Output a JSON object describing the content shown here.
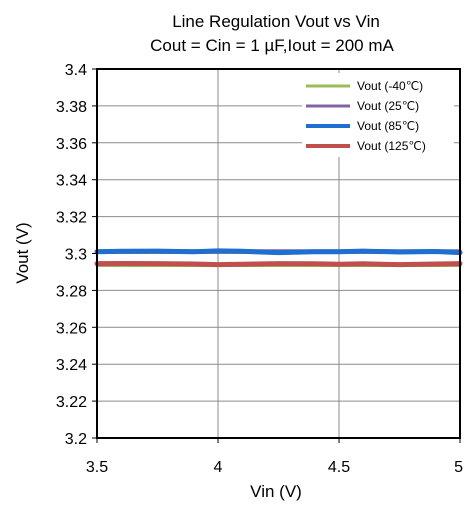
{
  "chart_data": {
    "type": "line",
    "title": [
      "Line Regulation Vout vs Vin",
      "Cout = Cin = 1 µF,Iout = 200 mA"
    ],
    "xlabel": "Vin (V)",
    "ylabel": "Vout (V)",
    "xlim": [
      3.5,
      5
    ],
    "ylim": [
      3.2,
      3.4
    ],
    "xticks": [
      3.5,
      4,
      4.5,
      5
    ],
    "xtick_labels": [
      "3.5",
      "4",
      "4.5",
      "5"
    ],
    "yticks": [
      3.2,
      3.22,
      3.24,
      3.26,
      3.28,
      3.3,
      3.32,
      3.34,
      3.36,
      3.38,
      3.4
    ],
    "ytick_labels": [
      "3.2",
      "3.22",
      "3.24",
      "3.26",
      "3.28",
      "3.3",
      "3.32",
      "3.34",
      "3.36",
      "3.38",
      "3.4"
    ],
    "grid": true,
    "legend_position": "top-right",
    "series": [
      {
        "name": "Vout  (-40℃)",
        "color": "#9bbb59",
        "x": [
          3.5,
          3.75,
          4.0,
          4.25,
          4.5,
          4.75,
          5.0
        ],
        "y": [
          3.2935,
          3.2935,
          3.2935,
          3.2935,
          3.2935,
          3.2935,
          3.2935
        ]
      },
      {
        "name": "Vout  (25℃)",
        "color": "#8064a2",
        "x": [
          3.5,
          3.75,
          4.0,
          4.25,
          4.5,
          4.75,
          5.0
        ],
        "y": [
          3.3015,
          3.3015,
          3.3015,
          3.3015,
          3.3015,
          3.3015,
          3.3015
        ]
      },
      {
        "name": "Vout  (85℃)",
        "color": "#1f6fd0",
        "x": [
          3.5,
          3.6,
          3.75,
          3.9,
          4.0,
          4.1,
          4.25,
          4.4,
          4.5,
          4.6,
          4.75,
          4.9,
          5.0
        ],
        "y": [
          3.301,
          3.3012,
          3.3013,
          3.301,
          3.3014,
          3.3012,
          3.3005,
          3.3009,
          3.301,
          3.3013,
          3.3008,
          3.3011,
          3.3005
        ]
      },
      {
        "name": "Vout  (125℃)",
        "color": "#c0504d",
        "x": [
          3.5,
          3.6,
          3.75,
          3.9,
          4.0,
          4.1,
          4.25,
          4.4,
          4.5,
          4.6,
          4.75,
          4.9,
          5.0
        ],
        "y": [
          3.2945,
          3.2946,
          3.2945,
          3.2943,
          3.294,
          3.2942,
          3.2945,
          3.2944,
          3.2942,
          3.2944,
          3.294,
          3.2943,
          3.2945
        ]
      }
    ]
  }
}
